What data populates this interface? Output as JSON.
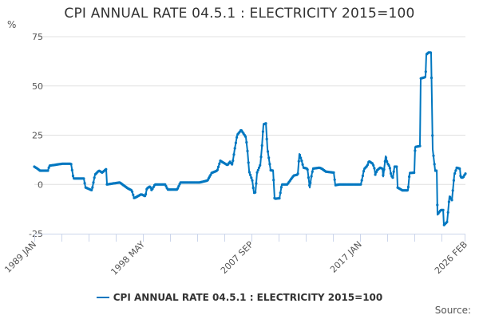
{
  "chart_data": {
    "type": "line",
    "title": "CPI ANNUAL RATE 04.5.1 : ELECTRICITY 2015=100",
    "ylabel": "%",
    "xlabel": "",
    "ylim": [
      -25,
      75
    ],
    "yticks": [
      75,
      50,
      25,
      0,
      -25
    ],
    "xlim": [
      1989.0,
      2026.083
    ],
    "x_tick_interval_months": 28,
    "x_tick_labels": [
      {
        "label": "1989 JAN",
        "x": 1989.0
      },
      {
        "label": "1998 MAY",
        "x": 1998.333
      },
      {
        "label": "2007 SEP",
        "x": 2007.667
      },
      {
        "label": "2017 JAN",
        "x": 2017.0
      },
      {
        "label": "2026 FEB",
        "x": 2026.083
      }
    ],
    "grid": true,
    "legend_position": "bottom",
    "color": "#0077c0",
    "series": [
      {
        "name": "CPI ANNUAL RATE 04.5.1 : ELECTRICITY 2015=100",
        "points": [
          [
            1989.0,
            9
          ],
          [
            1989.27,
            8
          ],
          [
            1989.48,
            7
          ],
          [
            1990.17,
            7
          ],
          [
            1990.3,
            9.5
          ],
          [
            1991.4,
            10.5
          ],
          [
            1992.16,
            10.5
          ],
          [
            1992.37,
            3
          ],
          [
            1993.26,
            3
          ],
          [
            1993.4,
            -1.5
          ],
          [
            1993.95,
            -3
          ],
          [
            1994.22,
            5
          ],
          [
            1994.56,
            7
          ],
          [
            1994.84,
            6
          ],
          [
            1995.18,
            7.8
          ],
          [
            1995.25,
            0
          ],
          [
            1996.35,
            1
          ],
          [
            1997.04,
            -2
          ],
          [
            1997.38,
            -3
          ],
          [
            1997.59,
            -7
          ],
          [
            1998.2,
            -5
          ],
          [
            1998.55,
            -6
          ],
          [
            1998.68,
            -2
          ],
          [
            1998.96,
            -1
          ],
          [
            1999.1,
            -3
          ],
          [
            1999.37,
            0
          ],
          [
            2000.26,
            0
          ],
          [
            2000.47,
            -2.6
          ],
          [
            2001.29,
            -2.6
          ],
          [
            2001.57,
            1
          ],
          [
            2003.22,
            1
          ],
          [
            2003.9,
            2
          ],
          [
            2004.25,
            5.8
          ],
          [
            2004.73,
            7
          ],
          [
            2005.0,
            12
          ],
          [
            2005.62,
            9.8
          ],
          [
            2005.83,
            11.5
          ],
          [
            2006.03,
            10
          ],
          [
            2006.24,
            18
          ],
          [
            2006.45,
            25
          ],
          [
            2006.79,
            27.7
          ],
          [
            2007.2,
            24
          ],
          [
            2007.34,
            16.6
          ],
          [
            2007.48,
            6.5
          ],
          [
            2007.75,
            2
          ],
          [
            2007.89,
            -4.3
          ],
          [
            2008.02,
            -4
          ],
          [
            2008.16,
            6
          ],
          [
            2008.44,
            10
          ],
          [
            2008.57,
            18.6
          ],
          [
            2008.71,
            30.5
          ],
          [
            2008.92,
            31
          ],
          [
            2009.05,
            18
          ],
          [
            2009.33,
            7.2
          ],
          [
            2009.54,
            7
          ],
          [
            2009.67,
            -7.3
          ],
          [
            2010.09,
            -7
          ],
          [
            2010.29,
            0
          ],
          [
            2010.77,
            0
          ],
          [
            2011.12,
            3
          ],
          [
            2011.32,
            4.5
          ],
          [
            2011.66,
            5
          ],
          [
            2011.8,
            15.5
          ],
          [
            2012.0,
            12
          ],
          [
            2012.15,
            8.5
          ],
          [
            2012.49,
            8
          ],
          [
            2012.69,
            -1.6
          ],
          [
            2012.83,
            4
          ],
          [
            2012.97,
            8
          ],
          [
            2013.52,
            8.5
          ],
          [
            2013.73,
            8
          ],
          [
            2014.07,
            6.5
          ],
          [
            2014.76,
            6
          ],
          [
            2014.89,
            -0.4
          ],
          [
            2015.24,
            0
          ],
          [
            2017.09,
            0
          ],
          [
            2017.23,
            3.8
          ],
          [
            2017.37,
            7.8
          ],
          [
            2017.64,
            9.5
          ],
          [
            2017.78,
            11.8
          ],
          [
            2018.12,
            10.5
          ],
          [
            2018.26,
            8
          ],
          [
            2018.33,
            4.9
          ],
          [
            2018.46,
            7
          ],
          [
            2018.74,
            8.5
          ],
          [
            2018.95,
            8
          ],
          [
            2019.01,
            4
          ],
          [
            2019.22,
            14.3
          ],
          [
            2019.36,
            11
          ],
          [
            2019.56,
            9
          ],
          [
            2019.7,
            4.5
          ],
          [
            2019.84,
            3.4
          ],
          [
            2019.98,
            9
          ],
          [
            2020.18,
            9
          ],
          [
            2020.25,
            -1.6
          ],
          [
            2020.66,
            -3
          ],
          [
            2021.14,
            -3
          ],
          [
            2021.28,
            5.8
          ],
          [
            2021.69,
            6
          ],
          [
            2021.76,
            19
          ],
          [
            2022.17,
            19.5
          ],
          [
            2022.24,
            53.8
          ],
          [
            2022.65,
            54.5
          ],
          [
            2022.72,
            66
          ],
          [
            2022.93,
            67
          ],
          [
            2023.13,
            67
          ],
          [
            2023.27,
            17.8
          ],
          [
            2023.48,
            7
          ],
          [
            2023.62,
            7
          ],
          [
            2023.68,
            -15.4
          ],
          [
            2023.96,
            -13
          ],
          [
            2024.17,
            -13
          ],
          [
            2024.23,
            -20.7
          ],
          [
            2024.51,
            -19
          ],
          [
            2024.71,
            -6
          ],
          [
            2024.92,
            -8
          ],
          [
            2025.13,
            4.9
          ],
          [
            2025.33,
            8.5
          ],
          [
            2025.61,
            8
          ],
          [
            2025.68,
            3.5
          ],
          [
            2025.88,
            3.5
          ],
          [
            2026.08,
            5.5
          ]
        ]
      }
    ]
  },
  "source_label": "Source:"
}
